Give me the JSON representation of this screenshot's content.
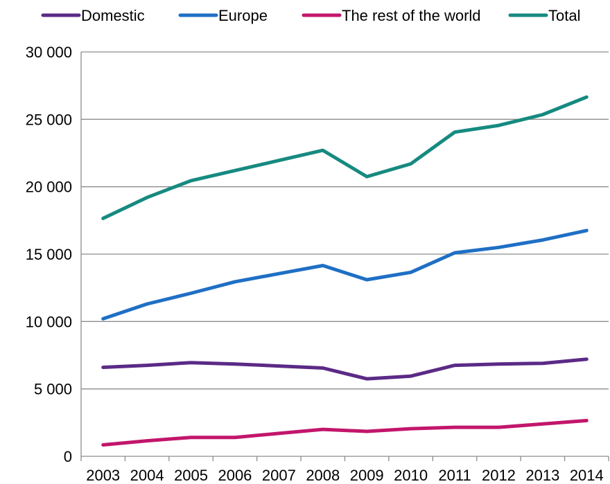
{
  "chart_data": {
    "type": "line",
    "title": "",
    "xlabel": "",
    "ylabel": "",
    "categories": [
      "2003",
      "2004",
      "2005",
      "2006",
      "2007",
      "2008",
      "2009",
      "2010",
      "2011",
      "2012",
      "2013",
      "2014"
    ],
    "series": [
      {
        "name": "Domestic",
        "color": "#5b2a86",
        "values": [
          6600,
          6750,
          6950,
          6850,
          6700,
          6550,
          5750,
          5950,
          6750,
          6850,
          6900,
          7200
        ]
      },
      {
        "name": "Europe",
        "color": "#1f6fc5",
        "values": [
          10200,
          11300,
          12100,
          12950,
          13550,
          14150,
          13100,
          13650,
          15100,
          15500,
          16050,
          16750
        ]
      },
      {
        "name": "The rest of the world",
        "color": "#c2166b",
        "values": [
          850,
          1150,
          1400,
          1400,
          1700,
          2000,
          1850,
          2050,
          2150,
          2150,
          2400,
          2650
        ]
      },
      {
        "name": "Total",
        "color": "#168a80",
        "values": [
          17650,
          19200,
          20450,
          21200,
          21950,
          22700,
          20750,
          21700,
          24050,
          24550,
          25350,
          26650
        ]
      }
    ],
    "y_ticks": [
      "0",
      "5 000",
      "10 000",
      "15 000",
      "20 000",
      "25 000",
      "30 000"
    ],
    "ylim": [
      0,
      30000
    ],
    "y_step": 5000,
    "grid": true,
    "legend_position": "top"
  }
}
